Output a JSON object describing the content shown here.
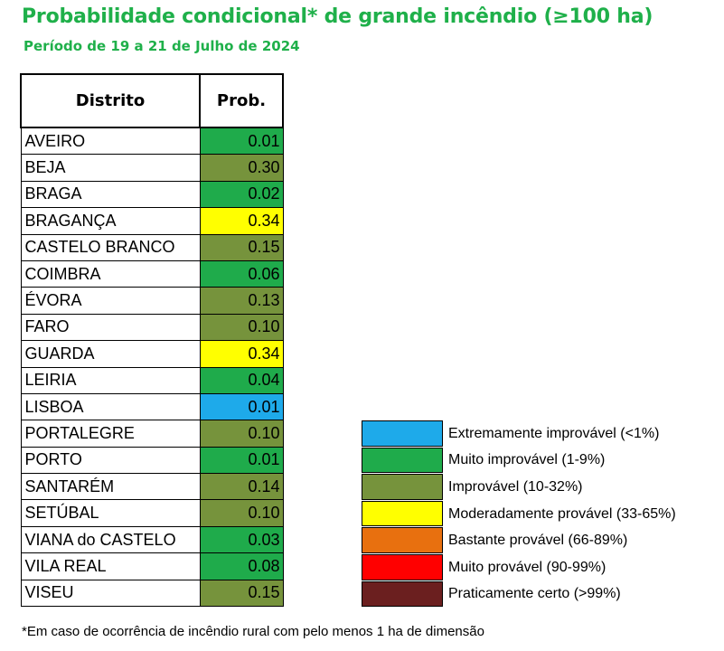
{
  "header": {
    "title": "Probabilidade condicional* de grande incêndio (≥100 ha)",
    "subtitle": "Período de 19 a 21 de Julho de 2024"
  },
  "chart_data": {
    "type": "table",
    "columns": [
      "Distrito",
      "Prob."
    ],
    "rows": [
      {
        "district": "AVEIRO",
        "prob": "0.01",
        "class": "Muito improvável (1-9%)",
        "color": "#1fab4b"
      },
      {
        "district": "BEJA",
        "prob": "0.30",
        "class": "Improvável (10-32%)",
        "color": "#76933c"
      },
      {
        "district": "BRAGA",
        "prob": "0.02",
        "class": "Muito improvável (1-9%)",
        "color": "#1fab4b"
      },
      {
        "district": "BRAGANÇA",
        "prob": "0.34",
        "class": "Moderadamente provável (33-65%)",
        "color": "#ffff00"
      },
      {
        "district": "CASTELO BRANCO",
        "prob": "0.15",
        "class": "Improvável (10-32%)",
        "color": "#76933c"
      },
      {
        "district": "COIMBRA",
        "prob": "0.06",
        "class": "Muito improvável (1-9%)",
        "color": "#1fab4b"
      },
      {
        "district": "ÉVORA",
        "prob": "0.13",
        "class": "Improvável (10-32%)",
        "color": "#76933c"
      },
      {
        "district": "FARO",
        "prob": "0.10",
        "class": "Improvável (10-32%)",
        "color": "#76933c"
      },
      {
        "district": "GUARDA",
        "prob": "0.34",
        "class": "Moderadamente provável (33-65%)",
        "color": "#ffff00"
      },
      {
        "district": "LEIRIA",
        "prob": "0.04",
        "class": "Muito improvável (1-9%)",
        "color": "#1fab4b"
      },
      {
        "district": "LISBOA",
        "prob": "0.01",
        "class": "Extremamente improvável (<1%)",
        "color": "#1eaaea"
      },
      {
        "district": "PORTALEGRE",
        "prob": "0.10",
        "class": "Improvável (10-32%)",
        "color": "#76933c"
      },
      {
        "district": "PORTO",
        "prob": "0.01",
        "class": "Muito improvável (1-9%)",
        "color": "#1fab4b"
      },
      {
        "district": "SANTARÉM",
        "prob": "0.14",
        "class": "Improvável (10-32%)",
        "color": "#76933c"
      },
      {
        "district": "SETÚBAL",
        "prob": "0.10",
        "class": "Improvável (10-32%)",
        "color": "#76933c"
      },
      {
        "district": "VIANA do CASTELO",
        "prob": "0.03",
        "class": "Muito improvável (1-9%)",
        "color": "#1fab4b"
      },
      {
        "district": "VILA REAL",
        "prob": "0.08",
        "class": "Muito improvável (1-9%)",
        "color": "#1fab4b"
      },
      {
        "district": "VISEU",
        "prob": "0.15",
        "class": "Improvável (10-32%)",
        "color": "#76933c"
      }
    ],
    "legend": [
      {
        "label": "Extremamente improvável (<1%)",
        "color": "#1eaaea"
      },
      {
        "label": "Muito improvável (1-9%)",
        "color": "#1fab4b"
      },
      {
        "label": "Improvável (10-32%)",
        "color": "#76933c"
      },
      {
        "label": "Moderadamente provável (33-65%)",
        "color": "#ffff00"
      },
      {
        "label": "Bastante provável (66-89%)",
        "color": "#e8700f"
      },
      {
        "label": "Muito provável (90-99%)",
        "color": "#ff0000"
      },
      {
        "label": "Praticamente certo (>99%)",
        "color": "#6b1f1f"
      }
    ]
  },
  "footnote": "*Em caso de ocorrência de incêndio rural com pelo menos 1 ha de dimensão"
}
